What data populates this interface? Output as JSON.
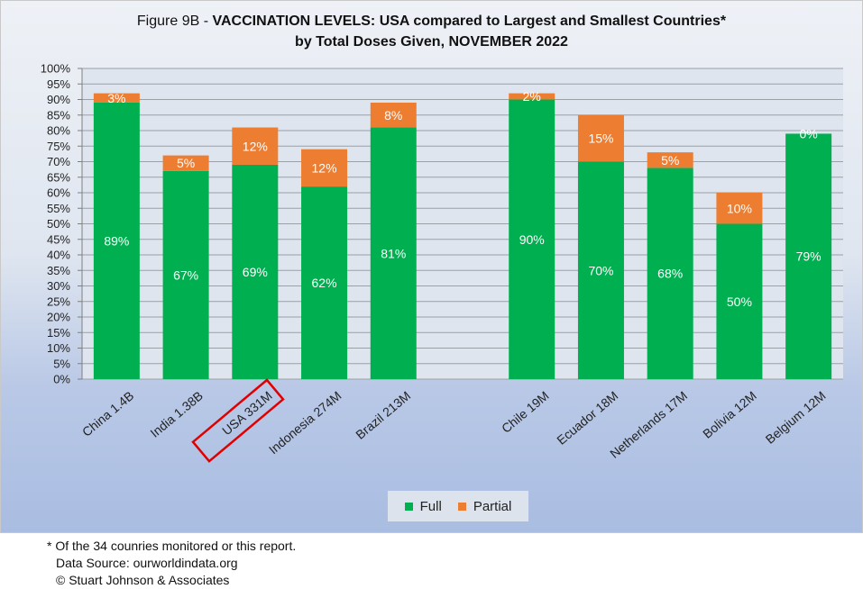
{
  "title": {
    "prefix": "Figure 9B - ",
    "bold": "VACCINATION LEVELS:  USA compared to Largest and Smallest Countries*",
    "line2": "by Total Doses Given, NOVEMBER 2022"
  },
  "colors": {
    "full": "#00b050",
    "partial": "#ed7d31",
    "highlight": "#e00000"
  },
  "legend": {
    "full": "Full",
    "partial": "Partial"
  },
  "footnotes": {
    "note": "* Of the 34 counries monitored or this report.",
    "source": "Data Source:  ourworldindata.org",
    "copyright": "© Stuart Johnson & Associates"
  },
  "chart_data": {
    "type": "bar",
    "stacked": true,
    "categories": [
      "China 1.4B",
      "India 1.38B",
      "USA 331M",
      "Indonesia 274M",
      "Brazil 213M",
      "",
      "Chile 19M",
      "Ecuador 18M",
      "Netherlands 17M",
      "Bolivia 12M",
      "Belgium 12M"
    ],
    "series": [
      {
        "name": "Full",
        "values": [
          89,
          67,
          69,
          62,
          81,
          null,
          90,
          70,
          68,
          50,
          79
        ],
        "labels": [
          "89%",
          "67%",
          "69%",
          "62%",
          "81%",
          "",
          "90%",
          "70%",
          "68%",
          "50%",
          "79%"
        ]
      },
      {
        "name": "Partial",
        "values": [
          3,
          5,
          12,
          12,
          8,
          null,
          2,
          15,
          5,
          10,
          0
        ],
        "labels": [
          "3%",
          "5%",
          "12%",
          "12%",
          "8%",
          "",
          "2%",
          "15%",
          "5%",
          "10%",
          "0%"
        ]
      }
    ],
    "highlighted_category": "USA 331M",
    "ylim": [
      0,
      100
    ],
    "y_tick_step": 5,
    "y_tick_labels": [
      "0%",
      "5%",
      "10%",
      "15%",
      "20%",
      "25%",
      "30%",
      "35%",
      "40%",
      "45%",
      "50%",
      "55%",
      "60%",
      "65%",
      "70%",
      "75%",
      "80%",
      "85%",
      "90%",
      "95%",
      "100%"
    ],
    "grid": true,
    "legend_position": "bottom"
  }
}
